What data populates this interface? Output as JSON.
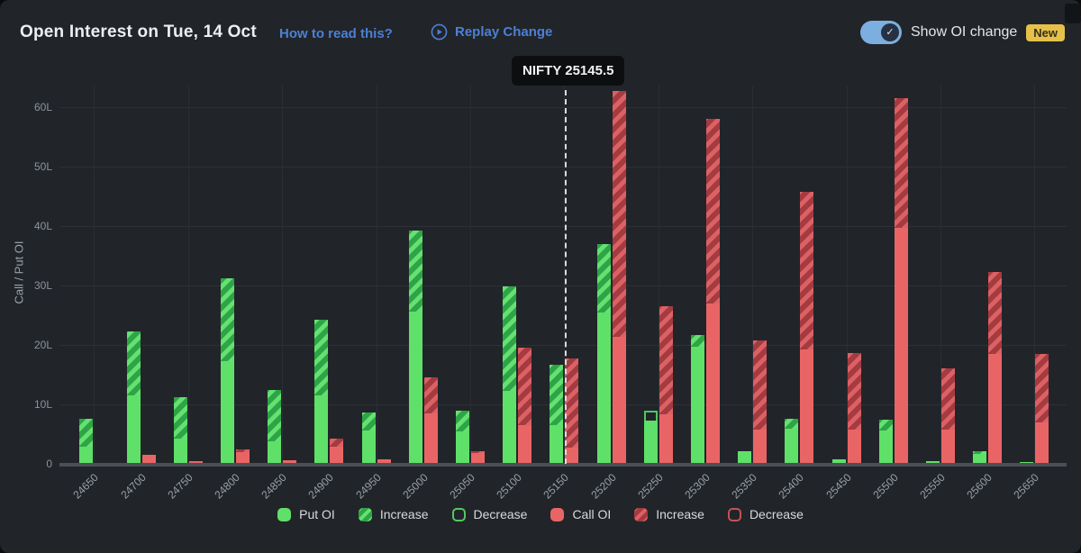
{
  "header": {
    "title": "Open Interest on Tue, 14 Oct",
    "help_link": "How to read this?",
    "replay_label": "Replay Change",
    "toggle_label": "Show OI change",
    "new_badge": "New",
    "link_color": "#4d7fd6",
    "toggle_on_color": "#7cafdf",
    "badge_color": "#e6c14a"
  },
  "tooltip": {
    "text": "NIFTY 25145.5"
  },
  "chart_data": {
    "type": "bar",
    "title": "Open Interest on Tue, 14 Oct",
    "ylabel": "Call / Put OI",
    "unit": "lakh (L)",
    "yticks": [
      "0",
      "10L",
      "20L",
      "30L",
      "40L",
      "50L",
      "60L"
    ],
    "ylim": [
      0,
      63
    ],
    "grid": true,
    "legend_position": "bottom",
    "nifty_marker": {
      "label": "NIFTY 25145.5",
      "value": 25145.5
    },
    "colors": {
      "put_solid": "#5fe069",
      "put_increase_stripe": "#2fa447",
      "put_decrease_outline": "#57c663",
      "call_solid": "#e96565",
      "call_increase_stripe": "#a43b41",
      "call_decrease_outline": "#c25257"
    },
    "legend": [
      {
        "label": "Put OI",
        "swatch": "put-solid"
      },
      {
        "label": "Increase",
        "swatch": "put-increase"
      },
      {
        "label": "Decrease",
        "swatch": "put-decrease"
      },
      {
        "label": "Call OI",
        "swatch": "call-solid"
      },
      {
        "label": "Increase",
        "swatch": "call-increase"
      },
      {
        "label": "Decrease",
        "swatch": "call-decrease"
      }
    ],
    "strikes": [
      {
        "strike": "24650",
        "put_oi": 7.5,
        "put_change": 4.7,
        "put_change_type": "increase",
        "call_oi": 0.1,
        "call_change": 0,
        "call_change_type": "none"
      },
      {
        "strike": "24700",
        "put_oi": 22.2,
        "put_change": 10.8,
        "put_change_type": "increase",
        "call_oi": 1.5,
        "call_change": 0,
        "call_change_type": "none"
      },
      {
        "strike": "24750",
        "put_oi": 11.2,
        "put_change": 6.9,
        "put_change_type": "increase",
        "call_oi": 0.4,
        "call_change": 0,
        "call_change_type": "none"
      },
      {
        "strike": "24800",
        "put_oi": 31.2,
        "put_change": 13.9,
        "put_change_type": "increase",
        "call_oi": 2.4,
        "call_change": 0.4,
        "call_change_type": "increase"
      },
      {
        "strike": "24850",
        "put_oi": 12.4,
        "put_change": 8.6,
        "put_change_type": "increase",
        "call_oi": 0.6,
        "call_change": 0,
        "call_change_type": "none"
      },
      {
        "strike": "24900",
        "put_oi": 24.2,
        "put_change": 12.7,
        "put_change_type": "increase",
        "call_oi": 4.3,
        "call_change": 1.3,
        "call_change_type": "increase"
      },
      {
        "strike": "24950",
        "put_oi": 8.6,
        "put_change": 3.1,
        "put_change_type": "increase",
        "call_oi": 0.8,
        "call_change": 0,
        "call_change_type": "none"
      },
      {
        "strike": "25000",
        "put_oi": 39.2,
        "put_change": 13.7,
        "put_change_type": "increase",
        "call_oi": 14.6,
        "call_change": 6.1,
        "call_change_type": "increase"
      },
      {
        "strike": "25050",
        "put_oi": 9.0,
        "put_change": 3.5,
        "put_change_type": "increase",
        "call_oi": 2.1,
        "call_change": 0.3,
        "call_change_type": "increase"
      },
      {
        "strike": "25100",
        "put_oi": 29.8,
        "put_change": 17.6,
        "put_change_type": "increase",
        "call_oi": 19.5,
        "call_change": 13.0,
        "call_change_type": "increase"
      },
      {
        "strike": "25150",
        "put_oi": 16.6,
        "put_change": 10.1,
        "put_change_type": "increase",
        "call_oi": 17.8,
        "call_change": 15.0,
        "call_change_type": "increase"
      },
      {
        "strike": "25200",
        "put_oi": 37.0,
        "put_change": 11.5,
        "put_change_type": "increase",
        "call_oi": 62.8,
        "call_change": 41.3,
        "call_change_type": "increase"
      },
      {
        "strike": "25250",
        "put_oi": 7.3,
        "put_change": 1.6,
        "put_change_type": "decrease",
        "call_oi": 26.5,
        "call_change": 18.2,
        "call_change_type": "increase"
      },
      {
        "strike": "25300",
        "put_oi": 21.6,
        "put_change": 2.0,
        "put_change_type": "increase",
        "call_oi": 58.0,
        "call_change": 31.0,
        "call_change_type": "increase"
      },
      {
        "strike": "25350",
        "put_oi": 2.1,
        "put_change": 0,
        "put_change_type": "none",
        "call_oi": 20.8,
        "call_change": 15.0,
        "call_change_type": "increase"
      },
      {
        "strike": "25400",
        "put_oi": 7.5,
        "put_change": 1.7,
        "put_change_type": "increase",
        "call_oi": 45.8,
        "call_change": 26.5,
        "call_change_type": "increase"
      },
      {
        "strike": "25450",
        "put_oi": 0.8,
        "put_change": 0,
        "put_change_type": "none",
        "call_oi": 18.7,
        "call_change": 12.9,
        "call_change_type": "increase"
      },
      {
        "strike": "25500",
        "put_oi": 7.4,
        "put_change": 1.8,
        "put_change_type": "increase",
        "call_oi": 61.5,
        "call_change": 21.8,
        "call_change_type": "increase"
      },
      {
        "strike": "25550",
        "put_oi": 0.5,
        "put_change": 0,
        "put_change_type": "none",
        "call_oi": 16.1,
        "call_change": 10.3,
        "call_change_type": "increase"
      },
      {
        "strike": "25600",
        "put_oi": 2.1,
        "put_change": 0.5,
        "put_change_type": "increase",
        "call_oi": 32.3,
        "call_change": 13.8,
        "call_change_type": "increase"
      },
      {
        "strike": "25650",
        "put_oi": 0.3,
        "put_change": 0,
        "put_change_type": "none",
        "call_oi": 18.5,
        "call_change": 11.5,
        "call_change_type": "increase"
      }
    ]
  }
}
